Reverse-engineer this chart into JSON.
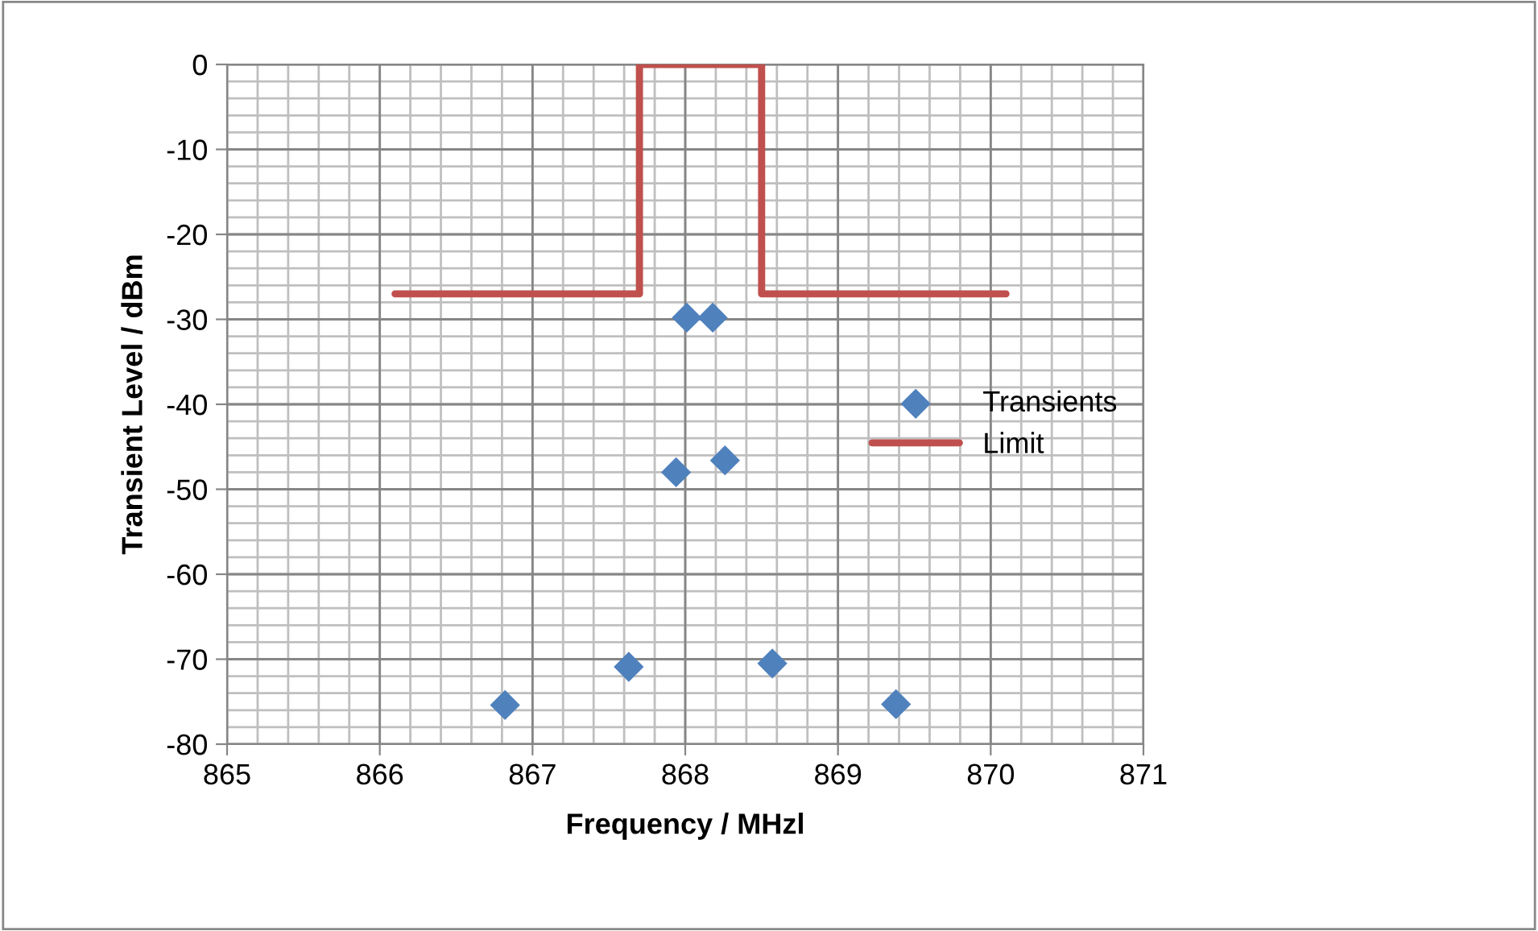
{
  "chart_data": {
    "type": "scatter",
    "xlabel": "Frequency / MHzl",
    "ylabel": "Transient Level / dBm",
    "xlim": [
      865,
      871
    ],
    "xticks": [
      865,
      866,
      867,
      868,
      869,
      870,
      871
    ],
    "ylim": [
      -80,
      0
    ],
    "yticks": [
      -80,
      -70,
      -60,
      -50,
      -40,
      -30,
      -20,
      -10,
      0
    ],
    "grid": true,
    "legend": "right",
    "series": [
      {
        "name": "Transients",
        "color": "#4f81bd",
        "marker": "diamond",
        "x": [
          866.82,
          867.63,
          867.94,
          868.01,
          868.18,
          868.26,
          868.57,
          869.38
        ],
        "values": [
          -75.4,
          -70.9,
          -48.0,
          -29.8,
          -29.8,
          -46.6,
          -70.5,
          -75.3
        ]
      },
      {
        "name": "Limit",
        "type": "line",
        "color": "#c0504d",
        "marker": "none",
        "line_style": "solid",
        "x": [
          866.1,
          867.7,
          867.7,
          868.5,
          868.5,
          870.1
        ],
        "values": [
          -27,
          -27,
          0,
          0,
          -27,
          -27
        ]
      }
    ]
  }
}
